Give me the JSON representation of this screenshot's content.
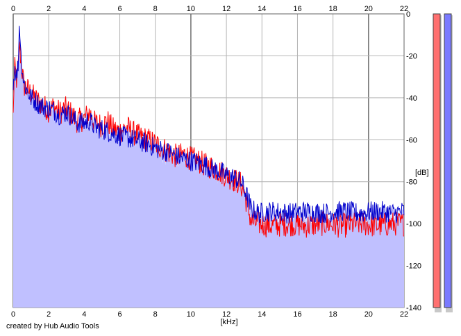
{
  "chart_data": {
    "type": "area",
    "xlabel": "[kHz]",
    "ylabel": "[dB]",
    "xlim": [
      0,
      22
    ],
    "ylim": [
      -140,
      0
    ],
    "x_ticks": [
      0,
      2,
      4,
      6,
      8,
      10,
      12,
      14,
      16,
      18,
      20,
      22
    ],
    "y_ticks": [
      0,
      -20,
      -40,
      -60,
      -80,
      -100,
      -120,
      -140
    ],
    "grid": true,
    "series": [
      {
        "color": "#ff0000",
        "points": [
          [
            0.0,
            -49
          ],
          [
            0.05,
            -30
          ],
          [
            0.1,
            -26
          ],
          [
            0.2,
            -32
          ],
          [
            0.3,
            -25
          ],
          [
            0.35,
            -14
          ],
          [
            0.45,
            -24
          ],
          [
            0.6,
            -34
          ],
          [
            0.8,
            -36
          ],
          [
            1.0,
            -38
          ],
          [
            1.3,
            -41
          ],
          [
            1.6,
            -43
          ],
          [
            2.0,
            -46
          ],
          [
            2.3,
            -44
          ],
          [
            2.6,
            -47
          ],
          [
            3.0,
            -45
          ],
          [
            3.3,
            -48
          ],
          [
            3.6,
            -51
          ],
          [
            4.0,
            -50
          ],
          [
            4.3,
            -47
          ],
          [
            4.6,
            -52
          ],
          [
            5.0,
            -53
          ],
          [
            5.3,
            -51
          ],
          [
            5.6,
            -55
          ],
          [
            6.0,
            -56
          ],
          [
            6.4,
            -54
          ],
          [
            6.8,
            -57
          ],
          [
            7.2,
            -59
          ],
          [
            7.6,
            -60
          ],
          [
            8.0,
            -62
          ],
          [
            8.4,
            -64
          ],
          [
            8.8,
            -66
          ],
          [
            9.2,
            -68
          ],
          [
            9.6,
            -67
          ],
          [
            10.0,
            -69
          ],
          [
            10.4,
            -70
          ],
          [
            10.8,
            -72
          ],
          [
            11.2,
            -73
          ],
          [
            11.6,
            -75
          ],
          [
            12.0,
            -77
          ],
          [
            12.4,
            -79
          ],
          [
            12.8,
            -81
          ],
          [
            13.0,
            -85
          ],
          [
            13.2,
            -92
          ],
          [
            13.4,
            -99
          ],
          [
            13.8,
            -100
          ],
          [
            14.5,
            -101
          ],
          [
            15.5,
            -100
          ],
          [
            16.5,
            -101
          ],
          [
            17.5,
            -100
          ],
          [
            18.5,
            -101
          ],
          [
            19.5,
            -100
          ],
          [
            20.5,
            -101
          ],
          [
            21.5,
            -100
          ],
          [
            22.0,
            -100
          ]
        ]
      },
      {
        "color": "#0000cc",
        "points": [
          [
            0.0,
            -36
          ],
          [
            0.05,
            -28
          ],
          [
            0.1,
            -25
          ],
          [
            0.2,
            -30
          ],
          [
            0.3,
            -22
          ],
          [
            0.35,
            -3
          ],
          [
            0.45,
            -22
          ],
          [
            0.6,
            -33
          ],
          [
            0.8,
            -37
          ],
          [
            1.0,
            -40
          ],
          [
            1.3,
            -42
          ],
          [
            1.6,
            -44
          ],
          [
            2.0,
            -45
          ],
          [
            2.3,
            -46
          ],
          [
            2.6,
            -48
          ],
          [
            3.0,
            -47
          ],
          [
            3.3,
            -49
          ],
          [
            3.6,
            -52
          ],
          [
            4.0,
            -52
          ],
          [
            4.3,
            -51
          ],
          [
            4.6,
            -54
          ],
          [
            5.0,
            -55
          ],
          [
            5.3,
            -56
          ],
          [
            5.6,
            -57
          ],
          [
            6.0,
            -58
          ],
          [
            6.4,
            -59
          ],
          [
            6.8,
            -60
          ],
          [
            7.2,
            -61
          ],
          [
            7.6,
            -62
          ],
          [
            8.0,
            -64
          ],
          [
            8.4,
            -65
          ],
          [
            8.8,
            -66
          ],
          [
            9.2,
            -68
          ],
          [
            9.6,
            -69
          ],
          [
            10.0,
            -70
          ],
          [
            10.4,
            -71
          ],
          [
            10.8,
            -72
          ],
          [
            11.2,
            -74
          ],
          [
            11.6,
            -75
          ],
          [
            12.0,
            -77
          ],
          [
            12.4,
            -78
          ],
          [
            12.8,
            -80
          ],
          [
            13.0,
            -83
          ],
          [
            13.2,
            -88
          ],
          [
            13.4,
            -93
          ],
          [
            13.8,
            -95
          ],
          [
            14.5,
            -94
          ],
          [
            15.5,
            -95
          ],
          [
            16.5,
            -94
          ],
          [
            17.5,
            -95
          ],
          [
            18.5,
            -94
          ],
          [
            19.5,
            -95
          ],
          [
            20.5,
            -94
          ],
          [
            21.5,
            -95
          ],
          [
            22.0,
            -94
          ]
        ]
      }
    ],
    "level_meters": [
      {
        "color": "#ff7070"
      },
      {
        "color": "#7a7aff"
      }
    ],
    "fill_color": "#c0c0ff"
  },
  "footer": {
    "credit": "created by Hub Audio Tools"
  }
}
